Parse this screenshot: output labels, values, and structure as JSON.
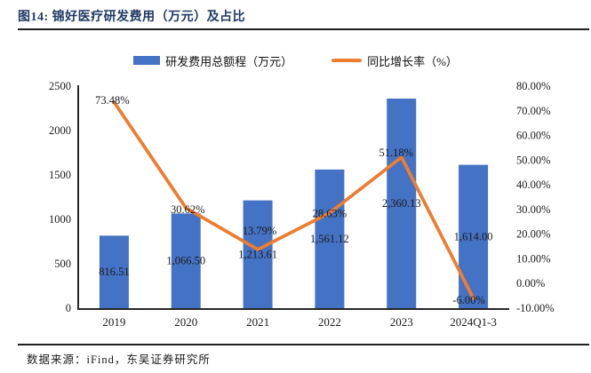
{
  "figure": {
    "title": "图14:  锦好医疗研发费用（万元）及占比",
    "source": "数据来源：iFind，东吴证券研究所"
  },
  "legend": {
    "items": [
      {
        "label": "研发费用总额程（万元）",
        "swatch": "bar-swatch",
        "color": "#4472C4"
      },
      {
        "label": "同比增长率（%）",
        "swatch": "line-swatch",
        "color": "#ED7D31"
      }
    ]
  },
  "chart_data": {
    "type": "combo",
    "title": "锦好医疗研发费用（万元）及占比",
    "categories": [
      "2019",
      "2020",
      "2021",
      "2022",
      "2023",
      "2024Q1-3"
    ],
    "series": [
      {
        "name": "研发费用总额程（万元）",
        "type": "bar",
        "axis": "left",
        "color": "#4472C4",
        "values": [
          816.51,
          1066.5,
          1213.61,
          1561.12,
          2360.13,
          1614.0
        ],
        "labels": [
          "816.51",
          "1,066.50",
          "1,213.61",
          "1,561.12",
          "2,360.13",
          "1,614.00"
        ]
      },
      {
        "name": "同比增长率（%）",
        "type": "line",
        "axis": "right",
        "color": "#ED7D31",
        "values": [
          73.48,
          30.62,
          13.79,
          28.63,
          51.18,
          -6.0
        ],
        "labels": [
          "73.48%",
          "30.62%",
          "13.79%",
          "28.63%",
          "51.18%",
          "-6.00%"
        ]
      }
    ],
    "left_axis": {
      "min": 0,
      "max": 2500,
      "step": 500,
      "ticks": [
        "0",
        "500",
        "1000",
        "1500",
        "2000",
        "2500"
      ]
    },
    "right_axis": {
      "min": -10,
      "max": 80,
      "step": 10,
      "ticks": [
        "80.00%",
        "70.00%",
        "60.00%",
        "50.00%",
        "40.00%",
        "30.00%",
        "20.00%",
        "10.00%",
        "0.00%",
        "-10.00%"
      ]
    },
    "grid": false,
    "legend_position": "top"
  }
}
